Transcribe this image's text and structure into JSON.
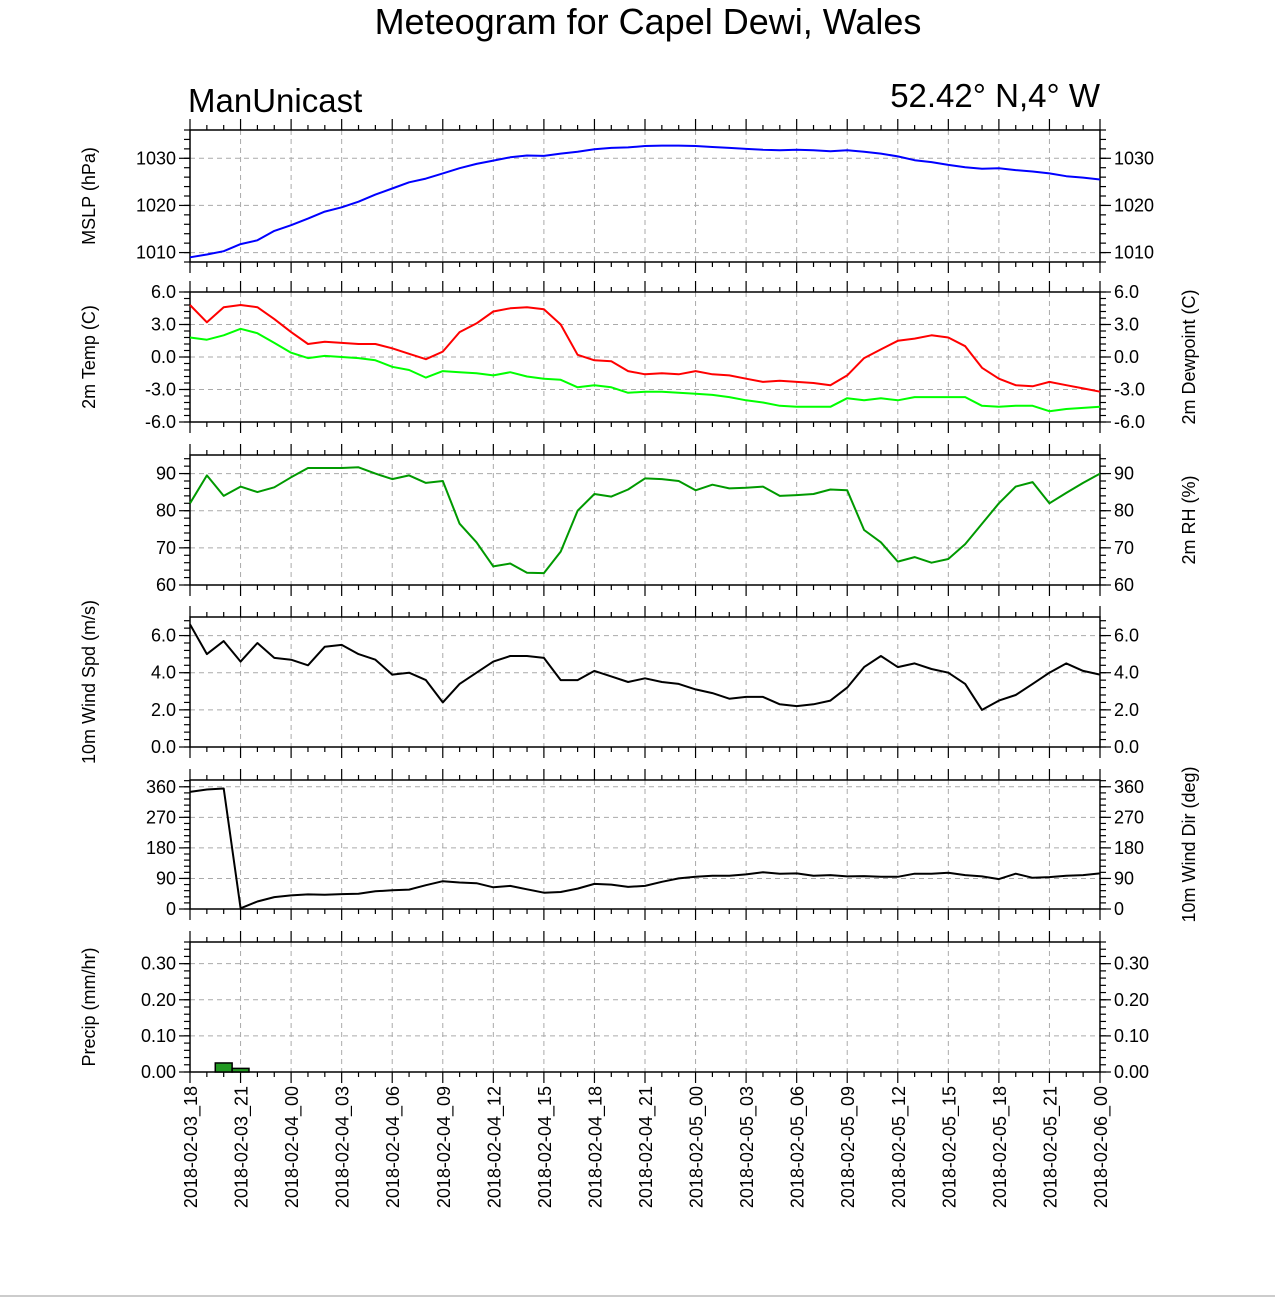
{
  "title": "Meteogram for Capel Dewi, Wales",
  "left_subtitle": "ManUnicast",
  "right_subtitle": "52.42° N,4° W",
  "chart_data": [
    {
      "type": "line",
      "ylabel": "MSLP (hPa)",
      "ylim": [
        1008,
        1036
      ],
      "yticks": [
        1010,
        1020,
        1030
      ],
      "tick_labels": [
        "1010",
        "1020",
        "1030"
      ],
      "series": [
        {
          "color": "#0000ff",
          "x": [
            0,
            1,
            2,
            3,
            4,
            5,
            6,
            7,
            8,
            9,
            10,
            11,
            12,
            13,
            14,
            15,
            16,
            17,
            18,
            19,
            20,
            21,
            22,
            23,
            24,
            25,
            26,
            27,
            28,
            29,
            30,
            31,
            32,
            33,
            34,
            35,
            36,
            37,
            38,
            39,
            40,
            41,
            42,
            43,
            44,
            45,
            46,
            47,
            48,
            49,
            50,
            51,
            52,
            53,
            54
          ],
          "values": [
            1009,
            1009.6,
            1010.3,
            1011.8,
            1012.6,
            1014.6,
            1015.8,
            1017.2,
            1018.7,
            1019.6,
            1020.8,
            1022.3,
            1023.6,
            1024.9,
            1025.7,
            1026.8,
            1027.9,
            1028.8,
            1029.5,
            1030.2,
            1030.6,
            1030.5,
            1031,
            1031.4,
            1031.9,
            1032.2,
            1032.3,
            1032.6,
            1032.7,
            1032.7,
            1032.6,
            1032.4,
            1032.2,
            1032,
            1031.8,
            1031.7,
            1031.8,
            1031.7,
            1031.5,
            1031.7,
            1031.4,
            1031.0,
            1030.4,
            1029.6,
            1029.2,
            1028.6,
            1028.1,
            1027.8,
            1027.9,
            1027.5,
            1027.2,
            1026.8,
            1026.2,
            1025.9,
            1025.5
          ]
        }
      ]
    },
    {
      "type": "line",
      "ylabel": "2m Temp (C)",
      "ylabel_right": "2m Dewpoint (C)",
      "ylim": [
        -6,
        6
      ],
      "yticks": [
        -6,
        -3,
        0,
        3,
        6
      ],
      "tick_labels": [
        "-6.0",
        "-3.0",
        "0.0",
        "3.0",
        "6.0"
      ],
      "series": [
        {
          "color": "#ff0000",
          "x": [
            0,
            1,
            2,
            3,
            4,
            5,
            6,
            7,
            8,
            9,
            10,
            11,
            12,
            13,
            14,
            15,
            16,
            17,
            18,
            19,
            20,
            21,
            22,
            23,
            24,
            25,
            26,
            27,
            28,
            29,
            30,
            31,
            32,
            33,
            34,
            35,
            36,
            37,
            38,
            39,
            40,
            41,
            42,
            43,
            44,
            45,
            46,
            47,
            48,
            49,
            50,
            51,
            52,
            53,
            54
          ],
          "values": [
            4.8,
            3.2,
            4.6,
            4.8,
            4.6,
            3.5,
            2.3,
            1.2,
            1.4,
            1.3,
            1.2,
            1.2,
            0.8,
            0.3,
            -0.2,
            0.5,
            2.3,
            3.1,
            4.2,
            4.5,
            4.6,
            4.4,
            3.0,
            0.2,
            -0.3,
            -0.4,
            -1.3,
            -1.6,
            -1.5,
            -1.6,
            -1.3,
            -1.6,
            -1.7,
            -2,
            -2.3,
            -2.2,
            -2.3,
            -2.4,
            -2.6,
            -1.7,
            -0.1,
            0.7,
            1.5,
            1.7,
            2,
            1.8,
            1,
            -1.0,
            -2.0,
            -2.6,
            -2.7,
            -2.3,
            -2.6,
            -2.9,
            -3.2
          ]
        },
        {
          "color": "#00ff00",
          "x": [
            0,
            1,
            2,
            3,
            4,
            5,
            6,
            7,
            8,
            9,
            10,
            11,
            12,
            13,
            14,
            15,
            16,
            17,
            18,
            19,
            20,
            21,
            22,
            23,
            24,
            25,
            26,
            27,
            28,
            29,
            30,
            31,
            32,
            33,
            34,
            35,
            36,
            37,
            38,
            39,
            40,
            41,
            42,
            43,
            44,
            45,
            46,
            47,
            48,
            49,
            50,
            51,
            52,
            53,
            54
          ],
          "values": [
            1.8,
            1.6,
            2.0,
            2.6,
            2.2,
            1.3,
            0.4,
            -0.1,
            0.1,
            0.0,
            -0.1,
            -0.3,
            -0.9,
            -1.2,
            -1.9,
            -1.3,
            -1.4,
            -1.5,
            -1.7,
            -1.4,
            -1.8,
            -2.0,
            -2.1,
            -2.8,
            -2.6,
            -2.8,
            -3.3,
            -3.2,
            -3.2,
            -3.3,
            -3.4,
            -3.5,
            -3.7,
            -4.0,
            -4.2,
            -4.5,
            -4.6,
            -4.6,
            -4.6,
            -3.8,
            -4.0,
            -3.8,
            -4.0,
            -3.7,
            -3.7,
            -3.7,
            -3.7,
            -4.5,
            -4.6,
            -4.5,
            -4.5,
            -5.0,
            -4.8,
            -4.7,
            -4.6
          ]
        }
      ]
    },
    {
      "type": "line",
      "ylabel_right": "2m RH (%)",
      "ylim": [
        60,
        95
      ],
      "yticks": [
        60,
        70,
        80,
        90
      ],
      "tick_labels": [
        "60",
        "70",
        "80",
        "90"
      ],
      "series": [
        {
          "color": "#009900",
          "x": [
            0,
            1,
            2,
            3,
            4,
            5,
            6,
            7,
            8,
            9,
            10,
            11,
            12,
            13,
            14,
            15,
            16,
            17,
            18,
            19,
            20,
            21,
            22,
            23,
            24,
            25,
            26,
            27,
            28,
            29,
            30,
            31,
            32,
            33,
            34,
            35,
            36,
            37,
            38,
            39,
            40,
            41,
            42,
            43,
            44,
            45,
            46,
            47,
            48,
            49,
            50,
            51,
            52,
            53,
            54
          ],
          "values": [
            82,
            89.5,
            84,
            86.5,
            85,
            86.3,
            89,
            91.5,
            91.5,
            91.5,
            91.7,
            90,
            88.5,
            89.5,
            87.5,
            88,
            76.5,
            71.5,
            65,
            65.8,
            63.3,
            63.2,
            69,
            80,
            84.5,
            83.8,
            85.7,
            88.7,
            88.5,
            88,
            85.5,
            87,
            86,
            86.2,
            86.5,
            84,
            84.2,
            84.5,
            85.7,
            85.5,
            74.8,
            71.5,
            66.3,
            67.5,
            66,
            67,
            71,
            76.5,
            82,
            86.5,
            87.7,
            82,
            84.8,
            87.5,
            90
          ]
        }
      ]
    },
    {
      "type": "line",
      "ylabel": "10m Wind Spd (m/s)",
      "ylim": [
        0,
        7
      ],
      "yticks": [
        0,
        2,
        4,
        6
      ],
      "tick_labels": [
        "0.0",
        "2.0",
        "4.0",
        "6.0"
      ],
      "series": [
        {
          "color": "#000000",
          "x": [
            0,
            1,
            2,
            3,
            4,
            5,
            6,
            7,
            8,
            9,
            10,
            11,
            12,
            13,
            14,
            15,
            16,
            17,
            18,
            19,
            20,
            21,
            22,
            23,
            24,
            25,
            26,
            27,
            28,
            29,
            30,
            31,
            32,
            33,
            34,
            35,
            36,
            37,
            38,
            39,
            40,
            41,
            42,
            43,
            44,
            45,
            46,
            47,
            48,
            49,
            50,
            51,
            52,
            53,
            54
          ],
          "values": [
            6.6,
            5.0,
            5.7,
            4.6,
            5.6,
            4.8,
            4.7,
            4.4,
            5.4,
            5.5,
            5.0,
            4.7,
            3.9,
            4.0,
            3.6,
            2.4,
            3.4,
            4.0,
            4.6,
            4.9,
            4.9,
            4.8,
            3.6,
            3.6,
            4.1,
            3.8,
            3.5,
            3.7,
            3.5,
            3.4,
            3.1,
            2.9,
            2.6,
            2.7,
            2.7,
            2.3,
            2.2,
            2.3,
            2.5,
            3.2,
            4.3,
            4.9,
            4.3,
            4.5,
            4.2,
            4.0,
            3.4,
            2.0,
            2.5,
            2.8,
            3.4,
            4.0,
            4.5,
            4.1,
            3.9
          ]
        }
      ]
    },
    {
      "type": "line",
      "ylabel_right": "10m Wind Dir (deg)",
      "ylim": [
        0,
        380
      ],
      "yticks": [
        0,
        90,
        180,
        270,
        360
      ],
      "tick_labels": [
        "0",
        "90",
        "180",
        "270",
        "360"
      ],
      "series": [
        {
          "color": "#000000",
          "x": [
            0,
            1,
            2,
            3,
            4,
            5,
            6,
            7,
            8,
            9,
            10,
            11,
            12,
            13,
            14,
            15,
            16,
            17,
            18,
            19,
            20,
            21,
            22,
            23,
            24,
            25,
            26,
            27,
            28,
            29,
            30,
            31,
            32,
            33,
            34,
            35,
            36,
            37,
            38,
            39,
            40,
            41,
            42,
            43,
            44,
            45,
            46,
            47,
            48,
            49,
            50,
            51,
            52,
            53,
            54
          ],
          "values": [
            345,
            352,
            355,
            2,
            22,
            35,
            40,
            43,
            42,
            44,
            45,
            52,
            55,
            57,
            70,
            82,
            78,
            76,
            64,
            68,
            58,
            48,
            50,
            60,
            74,
            72,
            65,
            68,
            80,
            90,
            95,
            98,
            98,
            102,
            108,
            104,
            105,
            98,
            100,
            96,
            97,
            95,
            95,
            104,
            104,
            107,
            100,
            96,
            88,
            104,
            92,
            94,
            98,
            100,
            105
          ]
        }
      ]
    },
    {
      "type": "bar",
      "ylabel": "Precip (mm/hr)",
      "ylim": [
        0,
        0.36
      ],
      "yticks": [
        0,
        0.1,
        0.2,
        0.3
      ],
      "tick_labels": [
        "0.00",
        "0.10",
        "0.20",
        "0.30"
      ],
      "x": [
        2,
        3
      ],
      "values": [
        0.025,
        0.01
      ],
      "color": "#229922"
    }
  ],
  "x_axis": {
    "xlim": [
      0,
      54
    ],
    "tick_positions": [
      0,
      3,
      6,
      9,
      12,
      15,
      18,
      21,
      24,
      27,
      30,
      33,
      36,
      39,
      42,
      45,
      48,
      51,
      54
    ],
    "tick_labels": [
      "2018-02-03_18",
      "2018-02-03_21",
      "2018-02-04_00",
      "2018-02-04_03",
      "2018-02-04_06",
      "2018-02-04_09",
      "2018-02-04_12",
      "2018-02-04_15",
      "2018-02-04_18",
      "2018-02-04_21",
      "2018-02-05_00",
      "2018-02-05_03",
      "2018-02-05_06",
      "2018-02-05_09",
      "2018-02-05_12",
      "2018-02-05_15",
      "2018-02-05_18",
      "2018-02-05_21",
      "2018-02-06_00"
    ]
  }
}
